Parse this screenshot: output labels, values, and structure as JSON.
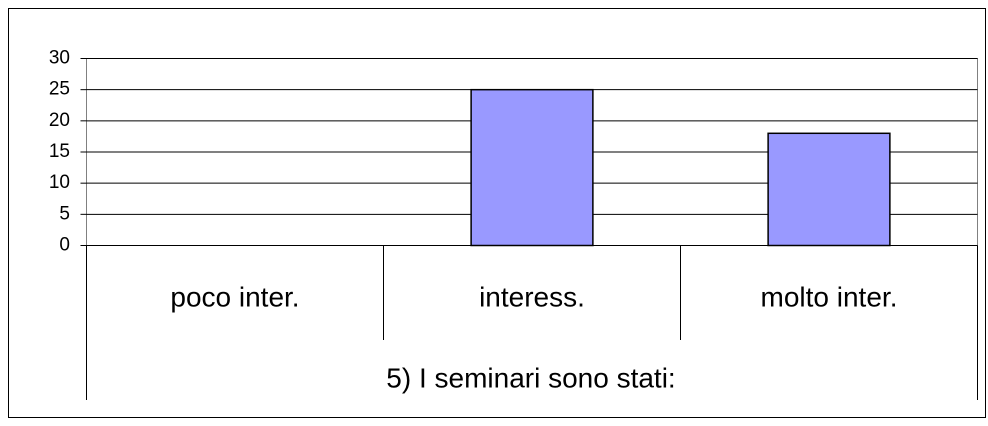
{
  "chart_data": {
    "type": "bar",
    "x_label": "5) I seminari sono stati:",
    "categories": [
      "poco inter.",
      "interess.",
      "molto inter."
    ],
    "values": [
      0,
      25,
      18
    ],
    "color": "#9999ff",
    "ylim": [
      0,
      30
    ],
    "yticks": [
      0,
      5,
      10,
      15,
      20,
      25,
      30
    ],
    "grid": true
  }
}
